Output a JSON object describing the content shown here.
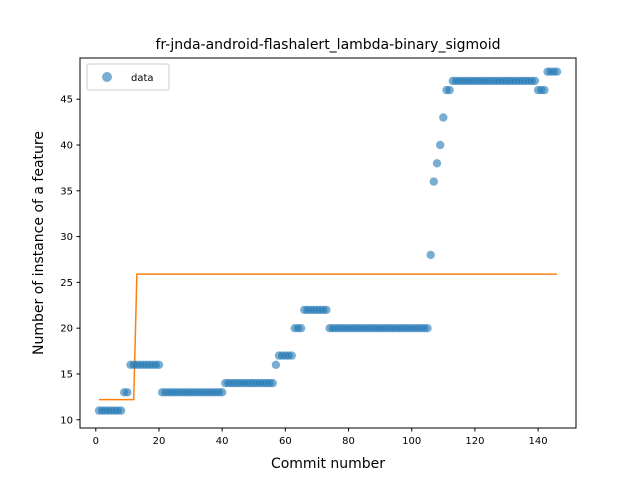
{
  "chart_data": {
    "type": "scatter",
    "title": "fr-jnda-android-flashalert_lambda-binary_sigmoid",
    "xlabel": "Commit number",
    "ylabel": "Number of instance of a feature",
    "xlim": [
      -5,
      152
    ],
    "ylim": [
      9.1,
      49.5
    ],
    "xticks": [
      0,
      20,
      40,
      60,
      80,
      100,
      120,
      140
    ],
    "yticks": [
      10,
      15,
      20,
      25,
      30,
      35,
      40,
      45
    ],
    "grid": false,
    "legend": {
      "placement": "top-left",
      "entries": [
        "data"
      ]
    },
    "colors": {
      "data": "#1f77b4",
      "fit": "#ff7f0e"
    },
    "series": [
      {
        "name": "data",
        "kind": "scatter",
        "points": [
          [
            1,
            11
          ],
          [
            2,
            11
          ],
          [
            3,
            11
          ],
          [
            4,
            11
          ],
          [
            5,
            11
          ],
          [
            6,
            11
          ],
          [
            7,
            11
          ],
          [
            8,
            11
          ],
          [
            9,
            13
          ],
          [
            10,
            13
          ],
          [
            11,
            16
          ],
          [
            12,
            16
          ],
          [
            13,
            16
          ],
          [
            14,
            16
          ],
          [
            15,
            16
          ],
          [
            16,
            16
          ],
          [
            17,
            16
          ],
          [
            18,
            16
          ],
          [
            19,
            16
          ],
          [
            20,
            16
          ],
          [
            21,
            13
          ],
          [
            22,
            13
          ],
          [
            23,
            13
          ],
          [
            24,
            13
          ],
          [
            25,
            13
          ],
          [
            26,
            13
          ],
          [
            27,
            13
          ],
          [
            28,
            13
          ],
          [
            29,
            13
          ],
          [
            30,
            13
          ],
          [
            31,
            13
          ],
          [
            32,
            13
          ],
          [
            33,
            13
          ],
          [
            34,
            13
          ],
          [
            35,
            13
          ],
          [
            36,
            13
          ],
          [
            37,
            13
          ],
          [
            38,
            13
          ],
          [
            39,
            13
          ],
          [
            40,
            13
          ],
          [
            41,
            14
          ],
          [
            42,
            14
          ],
          [
            43,
            14
          ],
          [
            44,
            14
          ],
          [
            45,
            14
          ],
          [
            46,
            14
          ],
          [
            47,
            14
          ],
          [
            48,
            14
          ],
          [
            49,
            14
          ],
          [
            50,
            14
          ],
          [
            51,
            14
          ],
          [
            52,
            14
          ],
          [
            53,
            14
          ],
          [
            54,
            14
          ],
          [
            55,
            14
          ],
          [
            56,
            14
          ],
          [
            57,
            16
          ],
          [
            58,
            17
          ],
          [
            59,
            17
          ],
          [
            60,
            17
          ],
          [
            61,
            17
          ],
          [
            62,
            17
          ],
          [
            63,
            20
          ],
          [
            64,
            20
          ],
          [
            65,
            20
          ],
          [
            66,
            22
          ],
          [
            67,
            22
          ],
          [
            68,
            22
          ],
          [
            69,
            22
          ],
          [
            70,
            22
          ],
          [
            71,
            22
          ],
          [
            72,
            22
          ],
          [
            73,
            22
          ],
          [
            74,
            20
          ],
          [
            75,
            20
          ],
          [
            76,
            20
          ],
          [
            77,
            20
          ],
          [
            78,
            20
          ],
          [
            79,
            20
          ],
          [
            80,
            20
          ],
          [
            81,
            20
          ],
          [
            82,
            20
          ],
          [
            83,
            20
          ],
          [
            84,
            20
          ],
          [
            85,
            20
          ],
          [
            86,
            20
          ],
          [
            87,
            20
          ],
          [
            88,
            20
          ],
          [
            89,
            20
          ],
          [
            90,
            20
          ],
          [
            91,
            20
          ],
          [
            92,
            20
          ],
          [
            93,
            20
          ],
          [
            94,
            20
          ],
          [
            95,
            20
          ],
          [
            96,
            20
          ],
          [
            97,
            20
          ],
          [
            98,
            20
          ],
          [
            99,
            20
          ],
          [
            100,
            20
          ],
          [
            101,
            20
          ],
          [
            102,
            20
          ],
          [
            103,
            20
          ],
          [
            104,
            20
          ],
          [
            105,
            20
          ],
          [
            106,
            28
          ],
          [
            107,
            36
          ],
          [
            108,
            38
          ],
          [
            109,
            40
          ],
          [
            110,
            43
          ],
          [
            111,
            46
          ],
          [
            112,
            46
          ],
          [
            113,
            47
          ],
          [
            114,
            47
          ],
          [
            115,
            47
          ],
          [
            116,
            47
          ],
          [
            117,
            47
          ],
          [
            118,
            47
          ],
          [
            119,
            47
          ],
          [
            120,
            47
          ],
          [
            121,
            47
          ],
          [
            122,
            47
          ],
          [
            123,
            47
          ],
          [
            124,
            47
          ],
          [
            125,
            47
          ],
          [
            126,
            47
          ],
          [
            127,
            47
          ],
          [
            128,
            47
          ],
          [
            129,
            47
          ],
          [
            130,
            47
          ],
          [
            131,
            47
          ],
          [
            132,
            47
          ],
          [
            133,
            47
          ],
          [
            134,
            47
          ],
          [
            135,
            47
          ],
          [
            136,
            47
          ],
          [
            137,
            47
          ],
          [
            138,
            47
          ],
          [
            139,
            47
          ],
          [
            140,
            46
          ],
          [
            141,
            46
          ],
          [
            142,
            46
          ],
          [
            143,
            48
          ],
          [
            144,
            48
          ],
          [
            145,
            48
          ],
          [
            146,
            48
          ]
        ]
      },
      {
        "kind": "line",
        "points": [
          [
            1,
            12.2
          ],
          [
            12,
            12.2
          ],
          [
            13,
            25.9
          ],
          [
            146,
            25.9
          ]
        ]
      }
    ]
  }
}
